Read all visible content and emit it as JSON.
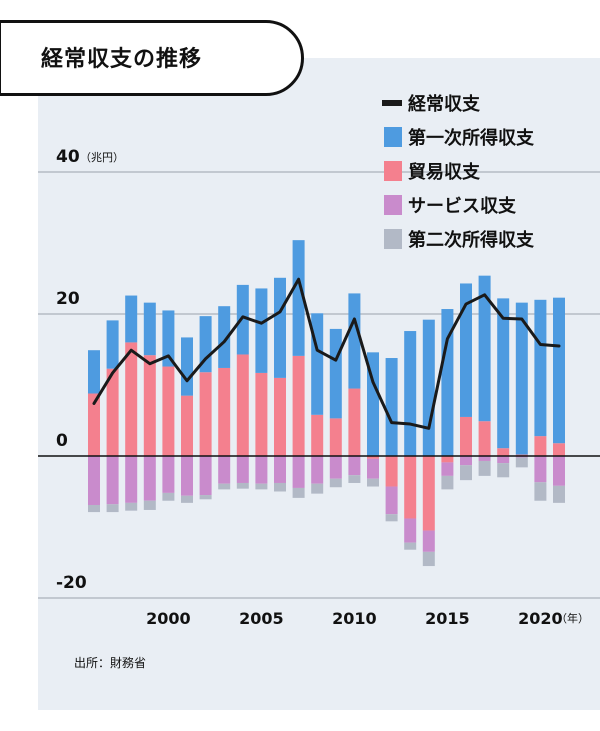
{
  "title": "経常収支の推移",
  "source": "出所：財務省",
  "chart_data": {
    "type": "bar",
    "subtype": "stacked-bar-with-line",
    "title": "経常収支の推移",
    "y_unit": "（兆円）",
    "x_unit": "（年）",
    "ylim": [
      -20,
      40
    ],
    "y_ticks": [
      -20,
      0,
      20,
      40
    ],
    "x_ticks": [
      2000,
      2005,
      2010,
      2015,
      2020
    ],
    "grid": "horizontal",
    "legend_position": "top-right",
    "colors": {
      "current_account": "#1a1a1a",
      "primary_income": "#4e9be0",
      "trade": "#f4808e",
      "services": "#c98bcc",
      "secondary_income": "#b2b9c6"
    },
    "years": [
      1996,
      1997,
      1998,
      1999,
      2000,
      2001,
      2002,
      2003,
      2004,
      2005,
      2006,
      2007,
      2008,
      2009,
      2010,
      2011,
      2012,
      2013,
      2014,
      2015,
      2016,
      2017,
      2018,
      2019,
      2020,
      2021
    ],
    "series": [
      {
        "key": "primary_income",
        "name": "第一次所得収支",
        "values": [
          6.1,
          6.8,
          6.6,
          7.4,
          7.9,
          8.2,
          7.9,
          8.7,
          9.8,
          11.9,
          14.1,
          16.3,
          14.3,
          12.6,
          13.4,
          14.6,
          13.8,
          17.6,
          19.2,
          20.7,
          18.8,
          20.5,
          21.1,
          21.4,
          19.2,
          20.5
        ]
      },
      {
        "key": "trade",
        "name": "貿易収支",
        "values": [
          8.8,
          12.3,
          16.0,
          14.2,
          12.6,
          8.5,
          11.8,
          12.4,
          14.3,
          11.7,
          11.0,
          14.1,
          5.8,
          5.3,
          9.5,
          -0.4,
          -4.3,
          -8.8,
          -10.5,
          -0.9,
          5.5,
          4.9,
          1.1,
          0.2,
          2.8,
          1.8
        ]
      },
      {
        "key": "services",
        "name": "サービス収支",
        "values": [
          -6.9,
          -6.8,
          -6.6,
          -6.3,
          -5.2,
          -5.6,
          -5.5,
          -3.9,
          -3.8,
          -3.9,
          -3.8,
          -4.5,
          -3.9,
          -3.2,
          -2.7,
          -2.8,
          -3.9,
          -3.4,
          -3.0,
          -1.9,
          -1.3,
          -0.7,
          -1.0,
          -0.2,
          -3.7,
          -4.2
        ]
      },
      {
        "key": "secondary_income",
        "name": "第二次所得収支",
        "values": [
          -1.0,
          -1.1,
          -1.1,
          -1.3,
          -1.1,
          -1.0,
          -0.6,
          -0.8,
          -0.8,
          -0.8,
          -1.2,
          -1.4,
          -1.4,
          -1.2,
          -1.1,
          -1.1,
          -1.0,
          -1.0,
          -2.0,
          -1.9,
          -2.1,
          -2.1,
          -2.0,
          -1.4,
          -2.6,
          -2.4
        ]
      },
      {
        "key": "current_account",
        "name": "経常収支",
        "values": [
          7.4,
          11.7,
          14.9,
          13.0,
          14.1,
          10.6,
          13.7,
          16.1,
          19.6,
          18.7,
          20.3,
          24.9,
          14.9,
          13.5,
          19.3,
          10.4,
          4.7,
          4.5,
          3.9,
          16.5,
          21.4,
          22.7,
          19.4,
          19.3,
          15.7,
          15.5
        ]
      }
    ],
    "legend": [
      "経常収支",
      "第一次所得収支",
      "貿易収支",
      "サービス収支",
      "第二次所得収支"
    ]
  }
}
